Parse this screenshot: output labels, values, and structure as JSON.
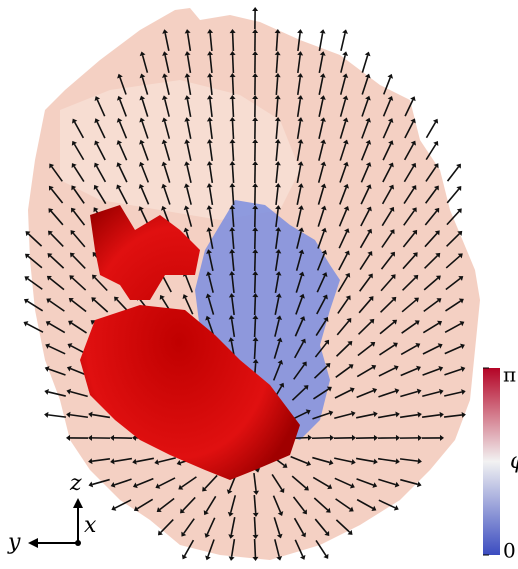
{
  "colorbar": {
    "label": "φ",
    "lim": [
      0,
      3.141592653589793
    ],
    "ticks": [
      0,
      {
        "value": 3.141592653589793,
        "label": "π"
      }
    ]
  },
  "axes": {
    "z": "z",
    "x": "x",
    "y": "y"
  }
}
